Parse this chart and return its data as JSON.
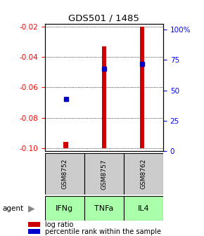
{
  "title": "GDS501 / 1485",
  "samples": [
    "GSM8752",
    "GSM8757",
    "GSM8762"
  ],
  "agents": [
    "IFNg",
    "TNFa",
    "IL4"
  ],
  "log_ratios": [
    -0.096,
    -0.033,
    -0.02
  ],
  "log_ratio_base": -0.1,
  "percentile_ranks": [
    43,
    68,
    72
  ],
  "ylim_left": [
    -0.102,
    -0.018
  ],
  "ylim_right": [
    0,
    105
  ],
  "left_ticks": [
    -0.1,
    -0.08,
    -0.06,
    -0.04,
    -0.02
  ],
  "right_ticks": [
    0,
    25,
    50,
    75,
    100
  ],
  "bar_color": "#cc0000",
  "dot_color": "#0000cc",
  "gray_bg": "#cccccc",
  "green_bg": "#aaffaa",
  "agent_arrow_color": "#888888",
  "bar_width": 0.12
}
